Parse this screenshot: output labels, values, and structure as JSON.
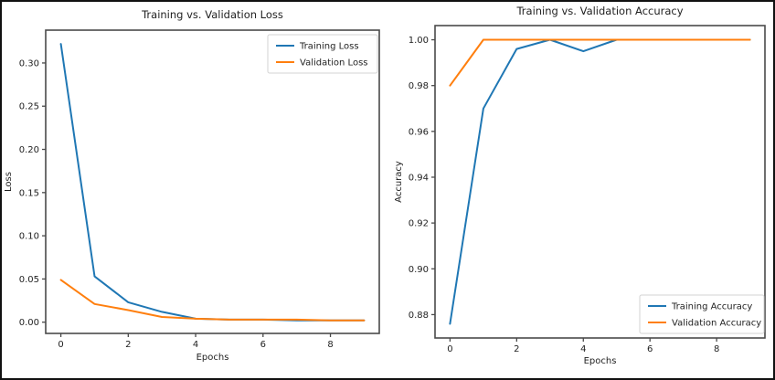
{
  "figure": {
    "background": "#ffffff",
    "border_color": "#111111",
    "spine_color": "#4a4a4a",
    "text_color": "#1f1f1f",
    "legend_border_color": "#d3d3d3"
  },
  "chart_data": [
    {
      "type": "line",
      "title": "Training vs. Validation Loss",
      "xlabel": "Epochs",
      "ylabel": "Loss",
      "x": [
        0,
        1,
        2,
        3,
        4,
        5,
        6,
        7,
        8,
        9
      ],
      "series": [
        {
          "name": "Training Loss",
          "color": "#1f77b4",
          "values": [
            0.322,
            0.053,
            0.023,
            0.012,
            0.004,
            0.003,
            0.003,
            0.002,
            0.002,
            0.002
          ]
        },
        {
          "name": "Validation Loss",
          "color": "#ff7f0e",
          "values": [
            0.049,
            0.021,
            0.014,
            0.006,
            0.004,
            0.003,
            0.003,
            0.003,
            0.002,
            0.002
          ]
        }
      ],
      "xlim": [
        -0.45,
        9.45
      ],
      "ylim": [
        -0.013,
        0.338
      ],
      "xtick_values": [
        0,
        2,
        4,
        6,
        8
      ],
      "xtick_labels": [
        "0",
        "2",
        "4",
        "6",
        "8"
      ],
      "ytick_values": [
        0.0,
        0.05,
        0.1,
        0.15,
        0.2,
        0.25,
        0.3
      ],
      "ytick_labels": [
        "0.00",
        "0.05",
        "0.10",
        "0.15",
        "0.20",
        "0.25",
        "0.30"
      ],
      "grid": false,
      "legend_position": "upper right"
    },
    {
      "type": "line",
      "title": "Training vs. Validation Accuracy",
      "xlabel": "Epochs",
      "ylabel": "Accuracy",
      "x": [
        0,
        1,
        2,
        3,
        4,
        5,
        6,
        7,
        8,
        9
      ],
      "series": [
        {
          "name": "Training Accuracy",
          "color": "#1f77b4",
          "values": [
            0.876,
            0.97,
            0.996,
            1.0,
            0.995,
            1.0,
            1.0,
            1.0,
            1.0,
            1.0
          ]
        },
        {
          "name": "Validation Accuracy",
          "color": "#ff7f0e",
          "values": [
            0.98,
            1.0,
            1.0,
            1.0,
            1.0,
            1.0,
            1.0,
            1.0,
            1.0,
            1.0
          ]
        }
      ],
      "xlim": [
        -0.45,
        9.45
      ],
      "ylim": [
        0.8698,
        1.0062
      ],
      "xtick_values": [
        0,
        2,
        4,
        6,
        8
      ],
      "xtick_labels": [
        "0",
        "2",
        "4",
        "6",
        "8"
      ],
      "ytick_values": [
        0.88,
        0.9,
        0.92,
        0.94,
        0.96,
        0.98,
        1.0
      ],
      "ytick_labels": [
        "0.88",
        "0.90",
        "0.92",
        "0.94",
        "0.96",
        "0.98",
        "1.00"
      ],
      "grid": false,
      "legend_position": "lower right"
    }
  ]
}
